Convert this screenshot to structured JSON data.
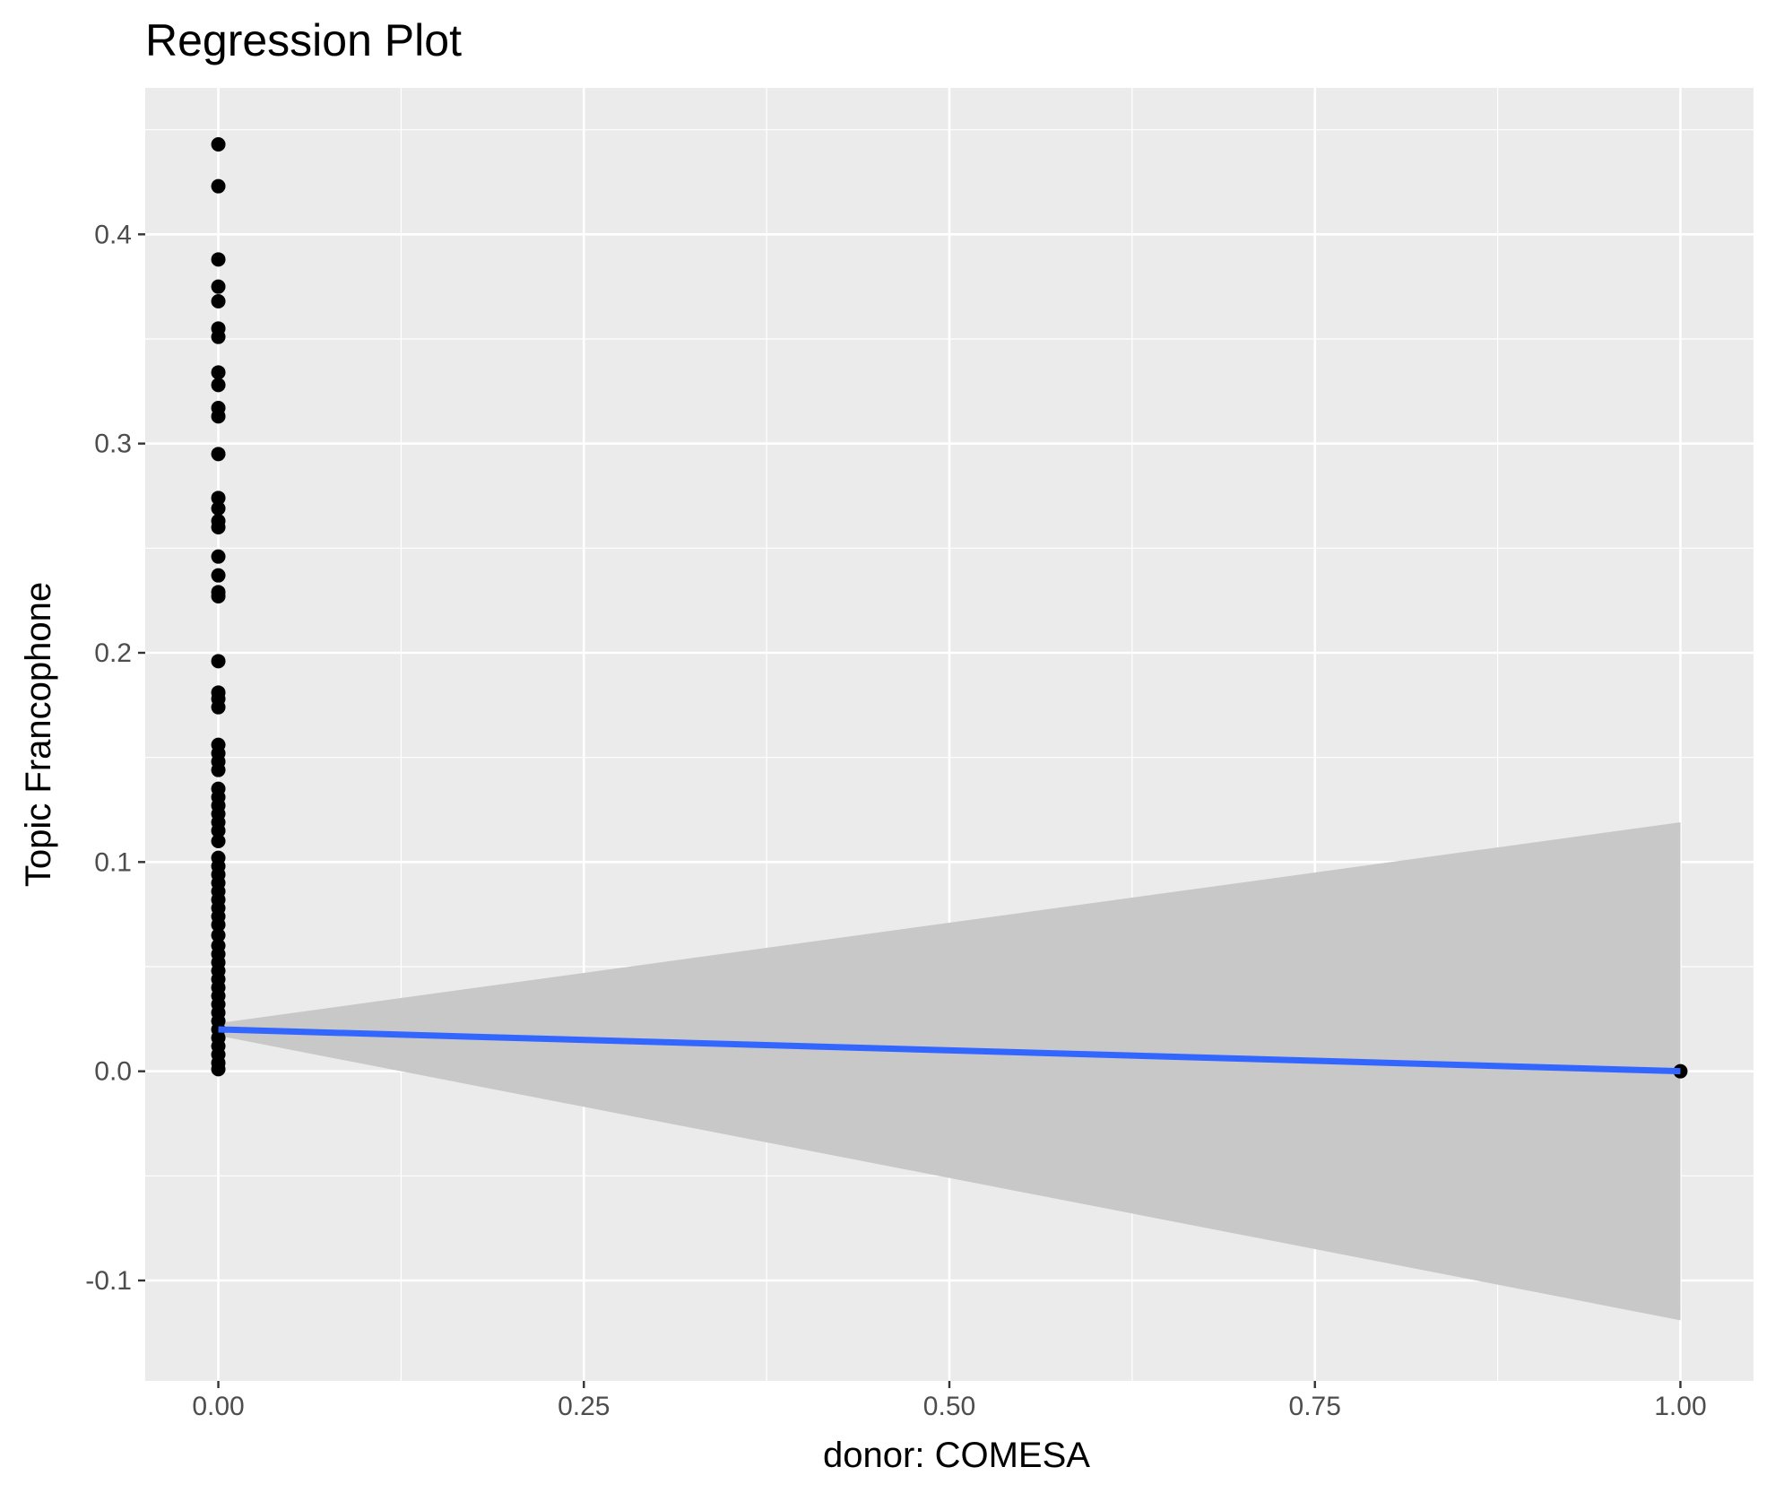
{
  "chart_data": {
    "type": "scatter",
    "title": "Regression Plot",
    "xlabel": "donor: COMESA",
    "ylabel": "Topic Francophone",
    "xlim": [
      -0.05,
      1.05
    ],
    "ylim": [
      -0.148,
      0.47
    ],
    "x_ticks": [
      {
        "value": 0.0,
        "label": "0.00"
      },
      {
        "value": 0.25,
        "label": "0.25"
      },
      {
        "value": 0.5,
        "label": "0.50"
      },
      {
        "value": 0.75,
        "label": "0.75"
      },
      {
        "value": 1.0,
        "label": "1.00"
      }
    ],
    "y_ticks": [
      {
        "value": -0.1,
        "label": "-0.1"
      },
      {
        "value": 0.0,
        "label": "0.0"
      },
      {
        "value": 0.1,
        "label": "0.1"
      },
      {
        "value": 0.2,
        "label": "0.2"
      },
      {
        "value": 0.3,
        "label": "0.3"
      },
      {
        "value": 0.4,
        "label": "0.4"
      }
    ],
    "grid": true,
    "legend": "none",
    "colors": {
      "panel_background": "#ebebeb",
      "grid": "#ffffff",
      "points": "#000000",
      "fit_line": "#3366ff",
      "confidence_band": "#c8c8c8",
      "tick_text": "#4d4d4d"
    },
    "points": [
      {
        "x": 0,
        "y": 0.443
      },
      {
        "x": 0,
        "y": 0.423
      },
      {
        "x": 0,
        "y": 0.388
      },
      {
        "x": 0,
        "y": 0.375
      },
      {
        "x": 0,
        "y": 0.368
      },
      {
        "x": 0,
        "y": 0.355
      },
      {
        "x": 0,
        "y": 0.351
      },
      {
        "x": 0,
        "y": 0.334
      },
      {
        "x": 0,
        "y": 0.328
      },
      {
        "x": 0,
        "y": 0.317
      },
      {
        "x": 0,
        "y": 0.313
      },
      {
        "x": 0,
        "y": 0.295
      },
      {
        "x": 0,
        "y": 0.274
      },
      {
        "x": 0,
        "y": 0.269
      },
      {
        "x": 0,
        "y": 0.263
      },
      {
        "x": 0,
        "y": 0.26
      },
      {
        "x": 0,
        "y": 0.246
      },
      {
        "x": 0,
        "y": 0.237
      },
      {
        "x": 0,
        "y": 0.229
      },
      {
        "x": 0,
        "y": 0.227
      },
      {
        "x": 0,
        "y": 0.196
      },
      {
        "x": 0,
        "y": 0.181
      },
      {
        "x": 0,
        "y": 0.178
      },
      {
        "x": 0,
        "y": 0.174
      },
      {
        "x": 0,
        "y": 0.156
      },
      {
        "x": 0,
        "y": 0.152
      },
      {
        "x": 0,
        "y": 0.148
      },
      {
        "x": 0,
        "y": 0.144
      },
      {
        "x": 0,
        "y": 0.135
      },
      {
        "x": 0,
        "y": 0.131
      },
      {
        "x": 0,
        "y": 0.127
      },
      {
        "x": 0,
        "y": 0.123
      },
      {
        "x": 0,
        "y": 0.119
      },
      {
        "x": 0,
        "y": 0.115
      },
      {
        "x": 0,
        "y": 0.11
      },
      {
        "x": 0,
        "y": 0.102
      },
      {
        "x": 0,
        "y": 0.098
      },
      {
        "x": 0,
        "y": 0.094
      },
      {
        "x": 0,
        "y": 0.09
      },
      {
        "x": 0,
        "y": 0.086
      },
      {
        "x": 0,
        "y": 0.082
      },
      {
        "x": 0,
        "y": 0.078
      },
      {
        "x": 0,
        "y": 0.074
      },
      {
        "x": 0,
        "y": 0.07
      },
      {
        "x": 0,
        "y": 0.065
      },
      {
        "x": 0,
        "y": 0.06
      },
      {
        "x": 0,
        "y": 0.056
      },
      {
        "x": 0,
        "y": 0.052
      },
      {
        "x": 0,
        "y": 0.048
      },
      {
        "x": 0,
        "y": 0.044
      },
      {
        "x": 0,
        "y": 0.04
      },
      {
        "x": 0,
        "y": 0.036
      },
      {
        "x": 0,
        "y": 0.032
      },
      {
        "x": 0,
        "y": 0.028
      },
      {
        "x": 0,
        "y": 0.024
      },
      {
        "x": 0,
        "y": 0.02
      },
      {
        "x": 0,
        "y": 0.016
      },
      {
        "x": 0,
        "y": 0.012
      },
      {
        "x": 0,
        "y": 0.008
      },
      {
        "x": 0,
        "y": 0.004
      },
      {
        "x": 0,
        "y": 0.001
      },
      {
        "x": 1,
        "y": 0.0
      }
    ],
    "regression": {
      "x": [
        0,
        1
      ],
      "fit": [
        0.02,
        0.0
      ],
      "ci_lower": [
        0.017,
        -0.119
      ],
      "ci_upper": [
        0.023,
        0.119
      ]
    }
  }
}
